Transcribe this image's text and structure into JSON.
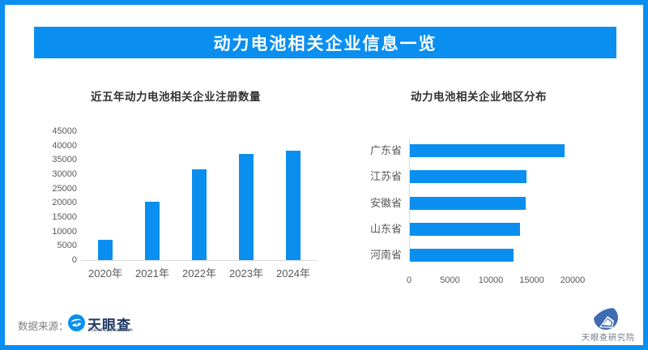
{
  "page": {
    "accent_color": "#0a8ff0",
    "background_color": "#ffffff",
    "axis_line_color": "#d9d9d9"
  },
  "header": {
    "title": "动力电池相关企业信息一览"
  },
  "chart_data": [
    {
      "type": "bar",
      "orientation": "vertical",
      "title": "近五年动力电池相关企业注册数量",
      "categories": [
        "2020年",
        "2021年",
        "2022年",
        "2023年",
        "2024年"
      ],
      "values": [
        7200,
        20400,
        31700,
        37200,
        38200
      ],
      "ylim": [
        0,
        45000
      ],
      "ytick_step": 5000,
      "bar_color": "#0a8ff0",
      "grid": false,
      "legend": false
    },
    {
      "type": "bar",
      "orientation": "horizontal",
      "title": "动力电池相关企业地区分布",
      "categories": [
        "广东省",
        "江苏省",
        "安徽省",
        "山东省",
        "河南省"
      ],
      "values": [
        18900,
        14300,
        14200,
        13500,
        12700
      ],
      "xlim": [
        0,
        20000
      ],
      "xtick_step": 5000,
      "bar_color": "#0a8ff0",
      "grid": false,
      "legend": false
    }
  ],
  "footer": {
    "source_label": "数据来源：",
    "source_logo_text": "天眼查",
    "source_logo_sub": "TianYanCha.com",
    "institute_name": "天眼查研究院"
  }
}
